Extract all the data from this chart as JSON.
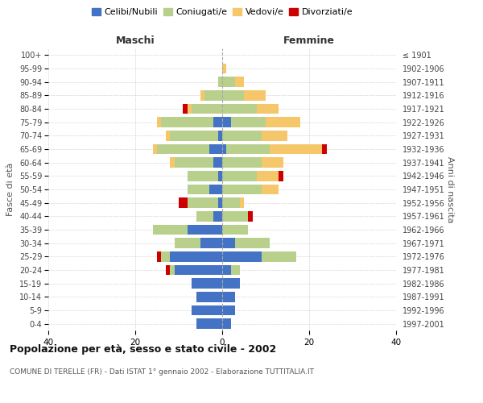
{
  "age_groups": [
    "0-4",
    "5-9",
    "10-14",
    "15-19",
    "20-24",
    "25-29",
    "30-34",
    "35-39",
    "40-44",
    "45-49",
    "50-54",
    "55-59",
    "60-64",
    "65-69",
    "70-74",
    "75-79",
    "80-84",
    "85-89",
    "90-94",
    "95-99",
    "100+"
  ],
  "birth_years": [
    "1997-2001",
    "1992-1996",
    "1987-1991",
    "1982-1986",
    "1977-1981",
    "1972-1976",
    "1967-1971",
    "1962-1966",
    "1957-1961",
    "1952-1956",
    "1947-1951",
    "1942-1946",
    "1937-1941",
    "1932-1936",
    "1927-1931",
    "1922-1926",
    "1917-1921",
    "1912-1916",
    "1907-1911",
    "1902-1906",
    "≤ 1901"
  ],
  "colors": {
    "celibi": "#4472C4",
    "coniugati": "#B8D08C",
    "vedovi": "#F5C66A",
    "divorziati": "#CC0000"
  },
  "maschi": {
    "celibi": [
      6,
      7,
      6,
      7,
      11,
      12,
      5,
      8,
      2,
      1,
      3,
      1,
      2,
      3,
      1,
      2,
      0,
      0,
      0,
      0,
      0
    ],
    "coniugati": [
      0,
      0,
      0,
      0,
      1,
      2,
      6,
      8,
      4,
      7,
      5,
      7,
      9,
      12,
      11,
      12,
      7,
      4,
      1,
      0,
      0
    ],
    "vedovi": [
      0,
      0,
      0,
      0,
      0,
      0,
      0,
      0,
      0,
      0,
      0,
      0,
      1,
      1,
      1,
      1,
      1,
      1,
      0,
      0,
      0
    ],
    "divorziati": [
      0,
      0,
      0,
      0,
      1,
      1,
      0,
      0,
      0,
      2,
      0,
      0,
      0,
      0,
      0,
      0,
      1,
      0,
      0,
      0,
      0
    ]
  },
  "femmine": {
    "celibi": [
      2,
      3,
      3,
      4,
      2,
      9,
      3,
      0,
      0,
      0,
      0,
      0,
      0,
      1,
      0,
      2,
      0,
      0,
      0,
      0,
      0
    ],
    "coniugati": [
      0,
      0,
      0,
      0,
      2,
      8,
      8,
      6,
      6,
      4,
      9,
      8,
      9,
      10,
      9,
      8,
      8,
      5,
      3,
      0,
      0
    ],
    "vedovi": [
      0,
      0,
      0,
      0,
      0,
      0,
      0,
      0,
      0,
      1,
      4,
      5,
      5,
      12,
      6,
      8,
      5,
      5,
      2,
      1,
      0
    ],
    "divorziati": [
      0,
      0,
      0,
      0,
      0,
      0,
      0,
      0,
      1,
      0,
      0,
      1,
      0,
      1,
      0,
      0,
      0,
      0,
      0,
      0,
      0
    ]
  },
  "title": "Popolazione per età, sesso e stato civile - 2002",
  "subtitle": "COMUNE DI TERELLE (FR) - Dati ISTAT 1° gennaio 2002 - Elaborazione TUTTITALIA.IT",
  "xlabel_left": "Maschi",
  "xlabel_right": "Femmine",
  "ylabel_left": "Fasce di età",
  "ylabel_right": "Anni di nascita",
  "xlim": 40,
  "legend_labels": [
    "Celibi/Nubili",
    "Coniugati/e",
    "Vedovi/e",
    "Divorziati/e"
  ],
  "background_color": "#ffffff",
  "grid_color": "#cccccc"
}
